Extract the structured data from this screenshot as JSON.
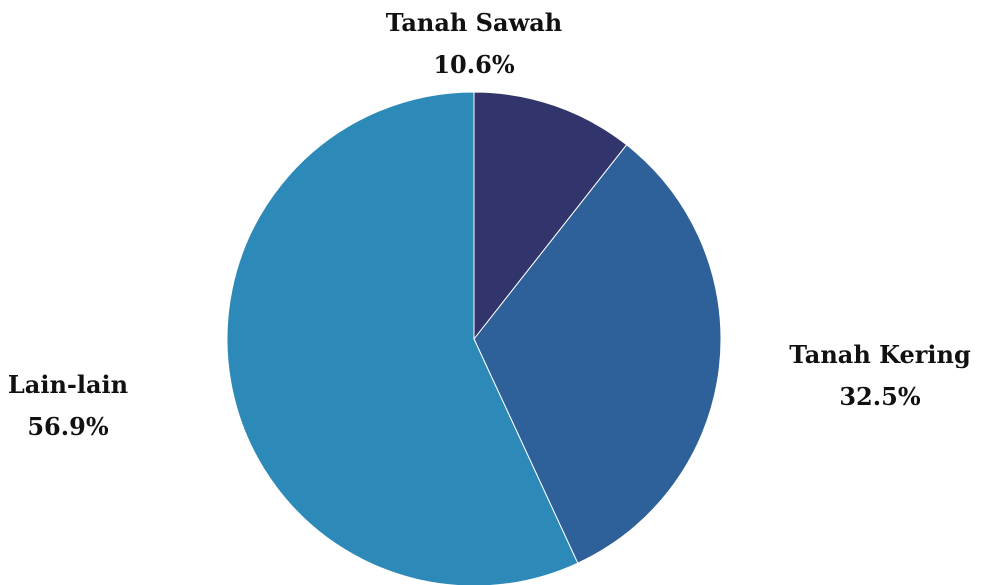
{
  "chart_data": {
    "type": "pie",
    "title": "",
    "slices": [
      {
        "label": "Tanah Sawah",
        "value": 10.6,
        "display": "10.6%",
        "color": "#32356b"
      },
      {
        "label": "Tanah Kering",
        "value": 32.5,
        "display": "32.5%",
        "color": "#2e6099"
      },
      {
        "label": "Lain-lain",
        "value": 56.9,
        "display": "56.9%",
        "color": "#2d8ab8"
      }
    ],
    "start_angle": "12 o'clock",
    "direction": "clockwise",
    "legend": "none"
  }
}
